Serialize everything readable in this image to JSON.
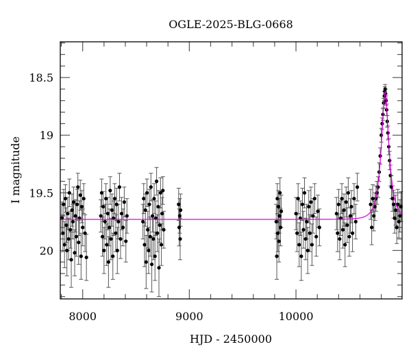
{
  "chart_data": {
    "type": "scatter",
    "title": "OGLE-2025-BLG-0668",
    "xlabel": "HJD - 2450000",
    "ylabel": "I magnitude",
    "xlim": [
      7790,
      10995
    ],
    "ylim": [
      20.42,
      18.19
    ],
    "y_inverted": true,
    "x_ticks": [
      8000,
      9000,
      10000
    ],
    "x_tick_labels": [
      "8000",
      "9000",
      "10000"
    ],
    "y_ticks": [
      18.5,
      19,
      19.5,
      20
    ],
    "y_tick_labels": [
      "18.5",
      "19",
      "19.5",
      "20"
    ],
    "grid": false,
    "colors": {
      "points": "#000000",
      "errorbars": "#555555",
      "model": "#dd00dd"
    },
    "model": {
      "type": "microlensing-point-lens",
      "t0": 10836,
      "tE": 70,
      "u0": 0.38,
      "baseline": 19.73
    },
    "points": [
      [
        7805,
        19.72,
        0.14
      ],
      [
        7815,
        19.85,
        0.16
      ],
      [
        7822,
        19.6,
        0.13
      ],
      [
        7830,
        19.95,
        0.2
      ],
      [
        7838,
        19.55,
        0.12
      ],
      [
        7845,
        19.78,
        0.15
      ],
      [
        7852,
        20.0,
        0.22
      ],
      [
        7860,
        19.68,
        0.14
      ],
      [
        7868,
        19.9,
        0.18
      ],
      [
        7875,
        19.5,
        0.12
      ],
      [
        7885,
        19.82,
        0.16
      ],
      [
        7893,
        20.08,
        0.24
      ],
      [
        7900,
        19.65,
        0.14
      ],
      [
        7908,
        19.75,
        0.15
      ],
      [
        7915,
        19.58,
        0.13
      ],
      [
        7925,
        20.02,
        0.2
      ],
      [
        7932,
        19.7,
        0.14
      ],
      [
        7940,
        19.88,
        0.17
      ],
      [
        7948,
        19.6,
        0.13
      ],
      [
        7955,
        19.45,
        0.12
      ],
      [
        7962,
        19.93,
        0.19
      ],
      [
        7970,
        19.72,
        0.15
      ],
      [
        7978,
        19.52,
        0.13
      ],
      [
        7985,
        20.05,
        0.2
      ],
      [
        7992,
        19.62,
        0.14
      ],
      [
        8000,
        19.8,
        0.16
      ],
      [
        8010,
        19.55,
        0.13
      ],
      [
        8022,
        19.85,
        0.16
      ],
      [
        8035,
        20.06,
        0.2
      ],
      [
        8170,
        19.7,
        0.14
      ],
      [
        8178,
        19.5,
        0.12
      ],
      [
        8185,
        19.88,
        0.17
      ],
      [
        8192,
        19.62,
        0.13
      ],
      [
        8200,
        20.0,
        0.2
      ],
      [
        8210,
        19.75,
        0.15
      ],
      [
        8218,
        19.55,
        0.13
      ],
      [
        8225,
        19.95,
        0.18
      ],
      [
        8235,
        19.68,
        0.14
      ],
      [
        8242,
        20.1,
        0.22
      ],
      [
        8250,
        19.8,
        0.16
      ],
      [
        8258,
        19.48,
        0.12
      ],
      [
        8265,
        19.9,
        0.18
      ],
      [
        8275,
        19.65,
        0.14
      ],
      [
        8283,
        20.05,
        0.2
      ],
      [
        8290,
        19.72,
        0.15
      ],
      [
        8300,
        19.55,
        0.13
      ],
      [
        8310,
        19.85,
        0.16
      ],
      [
        8318,
        19.6,
        0.14
      ],
      [
        8325,
        20.0,
        0.2
      ],
      [
        8335,
        19.75,
        0.15
      ],
      [
        8345,
        19.45,
        0.12
      ],
      [
        8355,
        19.9,
        0.17
      ],
      [
        8365,
        19.68,
        0.14
      ],
      [
        8378,
        19.8,
        0.16
      ],
      [
        8390,
        19.58,
        0.13
      ],
      [
        8405,
        19.92,
        0.18
      ],
      [
        8415,
        19.7,
        0.15
      ],
      [
        8565,
        19.75,
        0.15
      ],
      [
        8572,
        19.55,
        0.13
      ],
      [
        8580,
        19.95,
        0.19
      ],
      [
        8588,
        19.65,
        0.14
      ],
      [
        8595,
        20.1,
        0.23
      ],
      [
        8603,
        19.5,
        0.12
      ],
      [
        8610,
        19.82,
        0.16
      ],
      [
        8618,
        20.0,
        0.2
      ],
      [
        8625,
        19.6,
        0.13
      ],
      [
        8633,
        19.88,
        0.17
      ],
      [
        8640,
        19.45,
        0.12
      ],
      [
        8648,
        20.12,
        0.24
      ],
      [
        8655,
        19.7,
        0.14
      ],
      [
        8663,
        19.9,
        0.18
      ],
      [
        8670,
        19.55,
        0.13
      ],
      [
        8678,
        20.05,
        0.21
      ],
      [
        8685,
        19.72,
        0.15
      ],
      [
        8693,
        19.4,
        0.12
      ],
      [
        8700,
        19.85,
        0.16
      ],
      [
        8708,
        19.62,
        0.14
      ],
      [
        8715,
        20.15,
        0.25
      ],
      [
        8722,
        19.78,
        0.15
      ],
      [
        8730,
        19.5,
        0.13
      ],
      [
        8738,
        19.95,
        0.18
      ],
      [
        8745,
        19.68,
        0.14
      ],
      [
        8752,
        19.48,
        0.12
      ],
      [
        8760,
        19.82,
        0.16
      ],
      [
        8900,
        19.6,
        0.14
      ],
      [
        8905,
        19.8,
        0.16
      ],
      [
        8910,
        19.7,
        0.15
      ],
      [
        8914,
        19.9,
        0.18
      ],
      [
        8918,
        19.65,
        0.14
      ],
      [
        9815,
        19.75,
        0.15
      ],
      [
        9820,
        20.05,
        0.2
      ],
      [
        9825,
        19.55,
        0.13
      ],
      [
        9830,
        19.85,
        0.16
      ],
      [
        9835,
        19.62,
        0.14
      ],
      [
        9840,
        19.92,
        0.18
      ],
      [
        9845,
        19.7,
        0.15
      ],
      [
        9850,
        19.5,
        0.13
      ],
      [
        9855,
        19.8,
        0.16
      ],
      [
        9862,
        19.66,
        0.14
      ],
      [
        10000,
        19.68,
        0.14
      ],
      [
        10010,
        19.85,
        0.16
      ],
      [
        10020,
        19.55,
        0.13
      ],
      [
        10030,
        19.95,
        0.19
      ],
      [
        10040,
        19.72,
        0.15
      ],
      [
        10050,
        20.05,
        0.21
      ],
      [
        10060,
        19.6,
        0.14
      ],
      [
        10070,
        19.82,
        0.16
      ],
      [
        10080,
        19.5,
        0.13
      ],
      [
        10090,
        19.9,
        0.18
      ],
      [
        10100,
        19.75,
        0.15
      ],
      [
        10110,
        20.0,
        0.2
      ],
      [
        10120,
        19.62,
        0.14
      ],
      [
        10130,
        19.85,
        0.16
      ],
      [
        10140,
        19.58,
        0.13
      ],
      [
        10150,
        19.95,
        0.18
      ],
      [
        10160,
        19.7,
        0.15
      ],
      [
        10175,
        19.55,
        0.13
      ],
      [
        10190,
        19.88,
        0.17
      ],
      [
        10205,
        19.66,
        0.14
      ],
      [
        10220,
        19.8,
        0.16
      ],
      [
        10380,
        19.68,
        0.14
      ],
      [
        10390,
        19.85,
        0.16
      ],
      [
        10400,
        19.6,
        0.13
      ],
      [
        10410,
        19.9,
        0.18
      ],
      [
        10420,
        19.72,
        0.15
      ],
      [
        10430,
        19.55,
        0.13
      ],
      [
        10440,
        19.82,
        0.16
      ],
      [
        10450,
        19.65,
        0.14
      ],
      [
        10460,
        19.95,
        0.19
      ],
      [
        10470,
        19.58,
        0.13
      ],
      [
        10480,
        19.78,
        0.15
      ],
      [
        10490,
        19.5,
        0.13
      ],
      [
        10500,
        19.88,
        0.17
      ],
      [
        10510,
        19.7,
        0.15
      ],
      [
        10520,
        19.62,
        0.14
      ],
      [
        10530,
        19.85,
        0.16
      ],
      [
        10545,
        19.55,
        0.13
      ],
      [
        10560,
        19.75,
        0.15
      ],
      [
        10575,
        19.45,
        0.12
      ],
      [
        10700,
        19.6,
        0.13
      ],
      [
        10710,
        19.8,
        0.15
      ],
      [
        10720,
        19.55,
        0.12
      ],
      [
        10730,
        19.7,
        0.13
      ],
      [
        10740,
        19.62,
        0.12
      ],
      [
        10750,
        19.55,
        0.11
      ],
      [
        10760,
        19.5,
        0.1
      ],
      [
        10770,
        19.45,
        0.09
      ],
      [
        10780,
        19.32,
        0.08
      ],
      [
        10790,
        19.18,
        0.07
      ],
      [
        10800,
        19.0,
        0.06
      ],
      [
        10808,
        18.9,
        0.05
      ],
      [
        10815,
        18.82,
        0.05
      ],
      [
        10822,
        18.72,
        0.04
      ],
      [
        10828,
        18.66,
        0.04
      ],
      [
        10833,
        18.62,
        0.04
      ],
      [
        10836,
        18.6,
        0.04
      ],
      [
        10840,
        18.64,
        0.04
      ],
      [
        10845,
        18.7,
        0.04
      ],
      [
        10850,
        18.78,
        0.05
      ],
      [
        10856,
        18.88,
        0.05
      ],
      [
        10862,
        18.98,
        0.06
      ],
      [
        10870,
        19.1,
        0.07
      ],
      [
        10878,
        19.22,
        0.08
      ],
      [
        10886,
        19.35,
        0.09
      ],
      [
        10895,
        19.45,
        0.1
      ],
      [
        10905,
        19.55,
        0.11
      ],
      [
        10915,
        19.6,
        0.12
      ],
      [
        10925,
        19.72,
        0.13
      ],
      [
        10935,
        19.65,
        0.13
      ],
      [
        10945,
        19.8,
        0.14
      ],
      [
        10955,
        19.6,
        0.13
      ],
      [
        10965,
        19.75,
        0.14
      ],
      [
        10975,
        19.7,
        0.14
      ],
      [
        10985,
        19.62,
        0.13
      ]
    ]
  }
}
